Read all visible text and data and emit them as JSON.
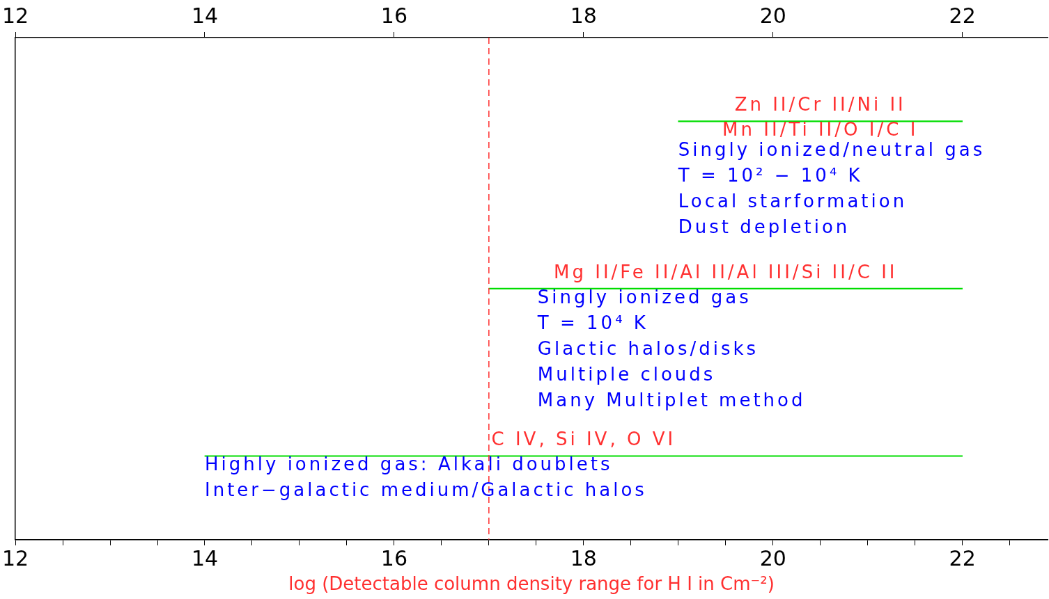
{
  "chart_data": {
    "type": "bar",
    "orientation": "horizontal",
    "categories": [
      "Zn II/Cr II/Ni II\nMn II/Ti II/O I/C I",
      "Mg II/Fe II/Al II/Al III/Si II/C II",
      "C IV, Si IV, O VI"
    ],
    "base": [
      19,
      17,
      14
    ],
    "values": [
      3,
      5,
      8
    ],
    "color": "#00dd00",
    "xlabel": "log (Detectable column density range for H I in Cm⁻²)",
    "xlim": [
      12,
      22.9
    ],
    "xticks": [
      12,
      {
        "value": 12.5,
        "label": null
      },
      {
        "value": 13,
        "label": null
      },
      {
        "value": 13.5,
        "label": null
      },
      14,
      {
        "value": 14.5,
        "label": null
      },
      {
        "value": 15,
        "label": null
      },
      {
        "value": 15.5,
        "label": null
      },
      16,
      {
        "value": 16.5,
        "label": null
      },
      {
        "value": 17,
        "label": null
      },
      {
        "value": 17.5,
        "label": null
      },
      18,
      {
        "value": 18.5,
        "label": null
      },
      {
        "value": 19,
        "label": null
      },
      {
        "value": 19.5,
        "label": null
      },
      20,
      {
        "value": 20.5,
        "label": null
      },
      {
        "value": 21,
        "label": null
      },
      {
        "value": 21.5,
        "label": null
      },
      22,
      {
        "value": 22.5,
        "label": null
      }
    ],
    "x2lim": [
      12,
      22.9
    ],
    "x2ticks": [
      12,
      14,
      16,
      18,
      20,
      22
    ],
    "tick_labels": "x",
    "grid": false,
    "legend": false,
    "ref_lines": [
      {
        "axis": "x",
        "value": 17,
        "color": "#ff3030",
        "line_style": "dashed"
      }
    ],
    "annotations": [
      "Singly ionized/neutral gas\nT = 10² − 10⁴ K\nLocal starformation\nDust depletion",
      "Singly ionized gas\nT = 10⁴ K\nGlactic halos/disks\nMultiple clouds\nMany Multiplet method",
      "Highly ionized gas: Alkali doublets\nInter−galactic medium/Galactic halos"
    ]
  }
}
